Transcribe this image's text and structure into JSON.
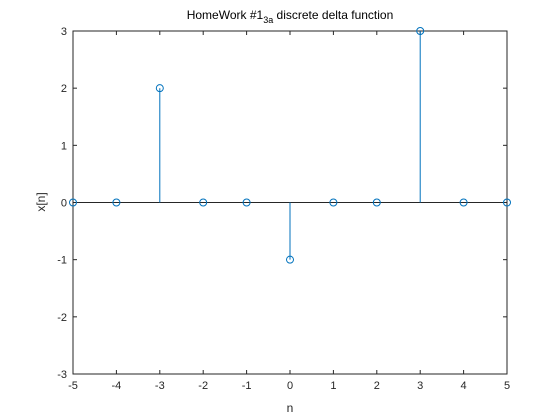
{
  "chart_data": {
    "type": "stem",
    "title_main": "HomeWork #1",
    "title_sub": "3a",
    "title_rest": " discrete delta function",
    "xlabel": "n",
    "ylabel": "x[n]",
    "xlim": [
      -5,
      5
    ],
    "ylim": [
      -3,
      3
    ],
    "xticks": [
      -5,
      -4,
      -3,
      -2,
      -1,
      0,
      1,
      2,
      3,
      4,
      5
    ],
    "yticks": [
      -3,
      -2,
      -1,
      0,
      1,
      2,
      3
    ],
    "grid": false,
    "colors": {
      "stem": "#0072bd",
      "axis": "#262626",
      "baseline": "#262626"
    },
    "x": [
      -5,
      -4,
      -3,
      -2,
      -1,
      0,
      1,
      2,
      3,
      4,
      5
    ],
    "y": [
      0,
      0,
      2,
      0,
      0,
      -1,
      0,
      0,
      3,
      0,
      0
    ]
  }
}
